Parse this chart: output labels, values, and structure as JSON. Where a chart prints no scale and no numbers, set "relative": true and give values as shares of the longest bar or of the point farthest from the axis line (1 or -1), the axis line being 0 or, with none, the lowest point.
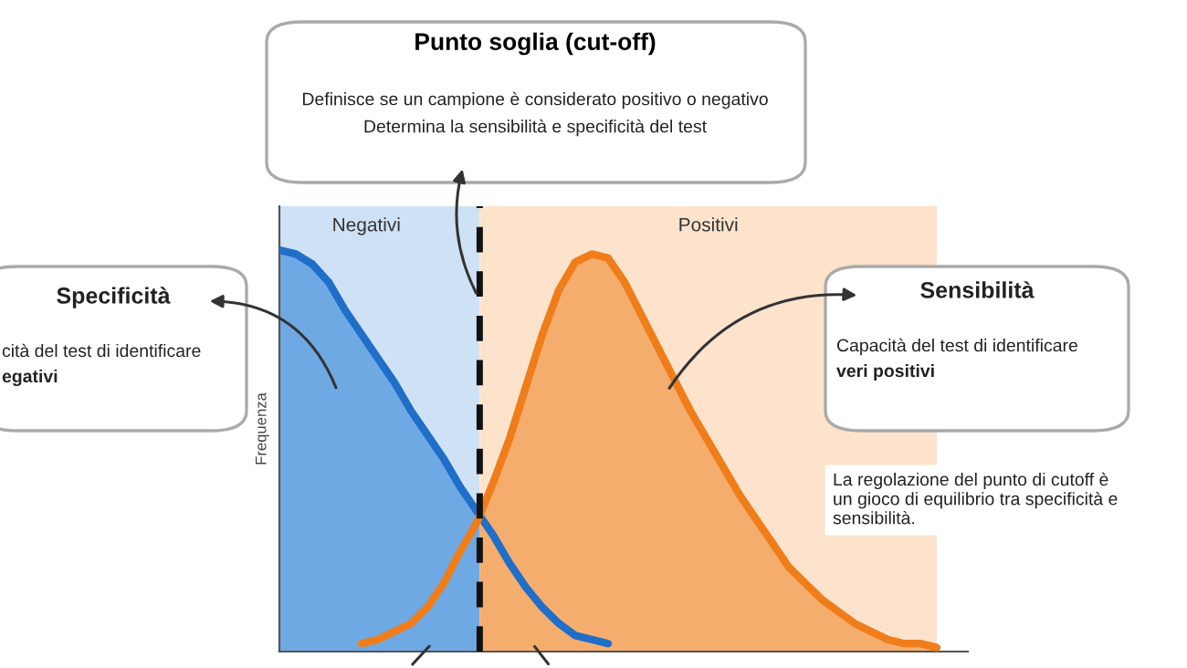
{
  "chart_data": {
    "type": "area",
    "relative": true,
    "title": "Punto soglia (cut-off)",
    "ylabel": "Frequenza",
    "categories": [
      null,
      null,
      null,
      null,
      null,
      null,
      null,
      null,
      null,
      null,
      null,
      null,
      null,
      null,
      null,
      null,
      null,
      null,
      null,
      null,
      null,
      null,
      null,
      null,
      null,
      null,
      null,
      null,
      null,
      null,
      null,
      null,
      null,
      null,
      null,
      null,
      null,
      null,
      null,
      null,
      null
    ],
    "series": [
      {
        "color": "#1f6fc9",
        "values": [
          1.0,
          0.99,
          0.965,
          0.92,
          0.85,
          0.79,
          0.73,
          0.67,
          0.6,
          0.54,
          0.48,
          0.41,
          0.35,
          0.29,
          0.22,
          0.16,
          0.11,
          0.07,
          0.04,
          0.03,
          0.02,
          null,
          null,
          null,
          null,
          null,
          null,
          null,
          null,
          null,
          null,
          null,
          null,
          null,
          null,
          null,
          null,
          null,
          null,
          null,
          null
        ]
      },
      {
        "color": "#ef7d1a",
        "values": [
          null,
          null,
          null,
          null,
          null,
          0.02,
          0.03,
          0.05,
          0.07,
          0.11,
          0.17,
          0.25,
          0.32,
          0.42,
          0.53,
          0.66,
          0.79,
          0.9,
          0.97,
          0.99,
          0.98,
          0.92,
          0.84,
          0.76,
          0.68,
          0.6,
          0.53,
          0.46,
          0.39,
          0.33,
          0.27,
          0.21,
          0.17,
          0.13,
          0.1,
          0.07,
          0.05,
          0.03,
          0.02,
          0.02,
          0.01
        ]
      }
    ],
    "annotations": [
      "Negativi",
      "Positivi",
      "Definisce se un campione è considerato positivo o negativo",
      "Determina la sensibilità e specificità del test",
      "Specificità",
      "cità del test di identificare",
      "egativi",
      "Sensibilità",
      "Capacità del test di identificare",
      "veri positivi",
      "La regolazione del punto di cutoff è\nun gioco di equilibrio tra specificità e\nsensibilità."
    ]
  }
}
